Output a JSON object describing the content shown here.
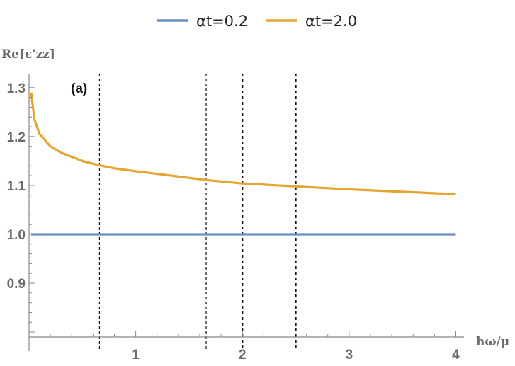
{
  "chart_data": {
    "type": "line",
    "panel_label": "(a)",
    "ylabel": "Re[ε'zz]",
    "xlabel": "ħω/μ",
    "xlim": [
      0,
      4.05
    ],
    "ylim": [
      0.79,
      1.32
    ],
    "x_ticks": [
      1,
      2,
      3,
      4
    ],
    "x_tick_labels": [
      "1",
      "2",
      "3",
      "4"
    ],
    "y_ticks": [
      0.9,
      1.0,
      1.1,
      1.2,
      1.3
    ],
    "y_tick_labels": [
      "0.9",
      "1.0",
      "1.1",
      "1.2",
      "1.3"
    ],
    "legend_position": "top-center",
    "series": [
      {
        "name": "αt=0.2",
        "color": "#6c8ebf",
        "x": [
          0.02,
          0.5,
          1.0,
          1.5,
          2.0,
          2.5,
          3.0,
          3.5,
          4.0
        ],
        "y": [
          1.0,
          1.0,
          1.0,
          1.0,
          1.0,
          1.0,
          1.0,
          1.0,
          1.0
        ]
      },
      {
        "name": "αt=2.0",
        "color": "#e5a533",
        "x": [
          0.02,
          0.05,
          0.1,
          0.2,
          0.3,
          0.5,
          0.66,
          0.8,
          1.0,
          1.3,
          1.66,
          2.0,
          2.5,
          3.0,
          3.5,
          4.0
        ],
        "y": [
          1.29,
          1.235,
          1.205,
          1.18,
          1.167,
          1.15,
          1.141,
          1.135,
          1.129,
          1.121,
          1.111,
          1.104,
          1.098,
          1.092,
          1.087,
          1.082
        ]
      }
    ],
    "vertical_lines": [
      {
        "x": 0.66,
        "style": "thin-dashed"
      },
      {
        "x": 1.66,
        "style": "thin-dashed"
      },
      {
        "x": 2.0,
        "style": "thick-dashed"
      },
      {
        "x": 2.5,
        "style": "thick-dashed"
      }
    ],
    "grid": false
  }
}
